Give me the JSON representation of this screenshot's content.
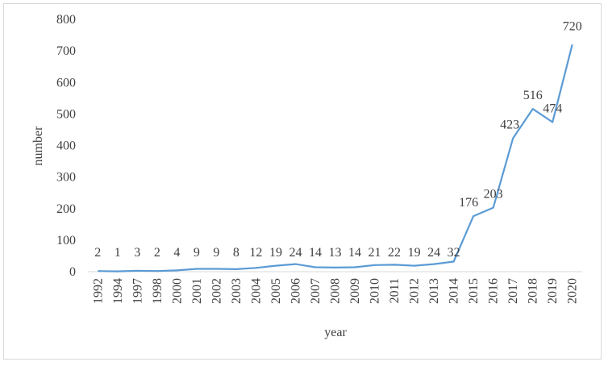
{
  "chart_data": {
    "type": "line",
    "title": "",
    "xlabel": "year",
    "ylabel": "number",
    "ylim": [
      0,
      800
    ],
    "yticks": [
      0,
      100,
      200,
      300,
      400,
      500,
      600,
      700,
      800
    ],
    "grid": false,
    "legend": "none",
    "categories": [
      "1992",
      "1994",
      "1997",
      "1998",
      "2000",
      "2001",
      "2002",
      "2003",
      "2004",
      "2005",
      "2006",
      "2007",
      "2008",
      "2009",
      "2010",
      "2011",
      "2012",
      "2013",
      "2014",
      "2015",
      "2016",
      "2017",
      "2018",
      "2019",
      "2020"
    ],
    "series": [
      {
        "values": [
          2,
          1,
          3,
          2,
          4,
          9,
          9,
          8,
          12,
          19,
          24,
          14,
          13,
          14,
          21,
          22,
          19,
          24,
          32,
          176,
          203,
          423,
          516,
          474,
          720
        ],
        "color": "#5b9bd5"
      }
    ]
  }
}
